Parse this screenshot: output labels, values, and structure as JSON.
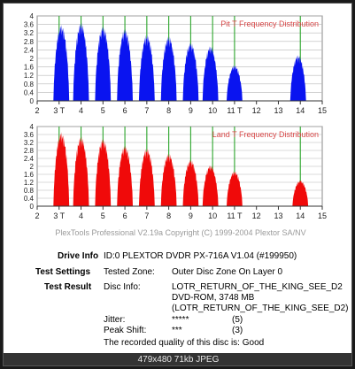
{
  "colors": {
    "pit": "#0a14f0",
    "land": "#f00a0a",
    "sync": "#2aa52a",
    "grid": "#b8b8b8",
    "title": "#d84848"
  },
  "chart_data": [
    {
      "type": "area",
      "title": "Pit T Frequency Distribution",
      "xlabel": "",
      "ylabel": "",
      "xlim": [
        2,
        15
      ],
      "ylim": [
        0,
        4
      ],
      "x_ticks": [
        "2",
        "3 T",
        "4",
        "5",
        "6",
        "7",
        "8",
        "9",
        "10",
        "11 T",
        "12",
        "13",
        "14",
        "15"
      ],
      "y_ticks": [
        "0",
        "0.4",
        "0.8",
        "1.2",
        "1.6",
        "2",
        "2.4",
        "2.8",
        "3.2",
        "3.6",
        "4"
      ],
      "sync_lines": [
        3,
        4,
        5,
        6,
        7,
        8,
        9,
        10,
        11,
        14
      ],
      "grid": true,
      "series": [
        {
          "peaks": [
            {
              "center": 3.1,
              "height": 3.62
            },
            {
              "center": 4.0,
              "height": 3.72
            },
            {
              "center": 5.0,
              "height": 3.55
            },
            {
              "center": 6.0,
              "height": 3.42
            },
            {
              "center": 7.0,
              "height": 3.15
            },
            {
              "center": 8.0,
              "height": 3.07
            },
            {
              "center": 9.0,
              "height": 2.77
            },
            {
              "center": 9.9,
              "height": 2.61
            },
            {
              "center": 11.0,
              "height": 1.7
            },
            {
              "center": 13.9,
              "height": 2.18
            }
          ]
        }
      ]
    },
    {
      "type": "area",
      "title": "Land T Frequency Distribution",
      "xlabel": "",
      "ylabel": "",
      "xlim": [
        2,
        15
      ],
      "ylim": [
        0,
        4
      ],
      "x_ticks": [
        "2",
        "3 T",
        "4",
        "5",
        "6",
        "7",
        "8",
        "9",
        "10",
        "11 T",
        "12",
        "13",
        "14",
        "15"
      ],
      "y_ticks": [
        "0",
        "0.4",
        "0.8",
        "1.2",
        "1.6",
        "2",
        "2.4",
        "2.8",
        "3.2",
        "3.6",
        "4"
      ],
      "sync_lines": [
        3,
        4,
        5,
        6,
        7,
        8,
        9,
        10,
        11,
        14
      ],
      "grid": true,
      "series": [
        {
          "peaks": [
            {
              "center": 3.1,
              "height": 3.75
            },
            {
              "center": 4.0,
              "height": 3.53
            },
            {
              "center": 5.0,
              "height": 3.42
            },
            {
              "center": 6.0,
              "height": 3.07
            },
            {
              "center": 7.0,
              "height": 2.93
            },
            {
              "center": 8.0,
              "height": 2.67
            },
            {
              "center": 9.0,
              "height": 2.36
            },
            {
              "center": 9.9,
              "height": 2.08
            },
            {
              "center": 11.0,
              "height": 1.78
            },
            {
              "center": 14.0,
              "height": 1.32
            }
          ]
        }
      ]
    }
  ],
  "footer_line": "PlexTools Professional V2.19a Copyright (C) 1999-2004 Plextor SA/NV",
  "info": {
    "drive_label": "Drive Info",
    "drive_value": "ID:0 PLEXTOR DVDR  PX-716A  V1.04 (#199950)",
    "settings_label": "Test Settings",
    "zone_label": "Tested Zone:",
    "zone_value": "Outer Disc Zone On Layer 0",
    "result_label": "Test Result",
    "disc_label": "Disc Info:",
    "disc_line1": "LOTR_RETURN_OF_THE_KING_SEE_D2",
    "disc_line2": "DVD-ROM, 3748 MB",
    "disc_line3": "(LOTR_RETURN_OF_THE_KING_SEE_D2)",
    "jitter_label": "Jitter:",
    "jitter_stars": "*****",
    "jitter_value": "(5)",
    "peak_label": "Peak Shift:",
    "peak_stars": "***",
    "peak_value": "(3)",
    "quality_text": "The recorded quality of this disc is: Good"
  },
  "caption": "479x480  71kb  JPEG"
}
